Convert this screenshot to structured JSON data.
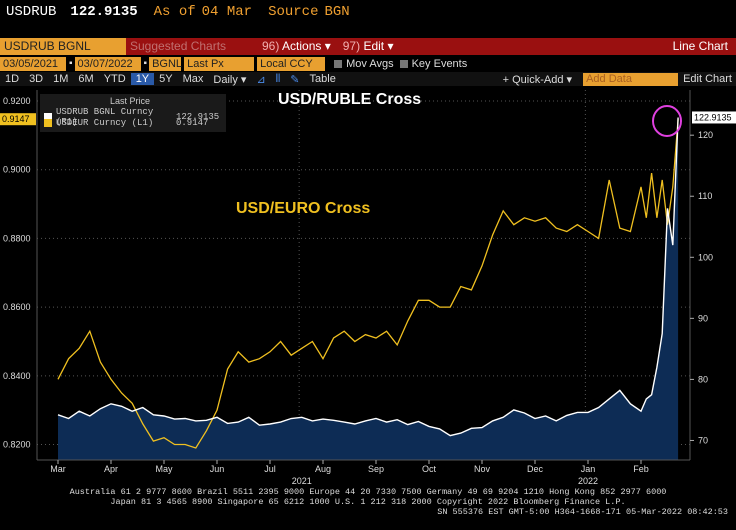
{
  "header": {
    "ticker": "USDRUB",
    "price": "122.9135",
    "asof_label": "As of",
    "asof_date": "04 Mar",
    "source_label": "Source",
    "source_value": "BGN"
  },
  "toolbar": {
    "security": "USDRUB BGNL Curncy",
    "suggested": "Suggested Charts",
    "actions": "Actions",
    "edit": "Edit",
    "chart_type": "Line Chart",
    "start_date": "03/05/2021",
    "end_date": "03/07/2022",
    "source": "BGNL",
    "field": "Last Px",
    "currency": "Local CCY",
    "mov_avgs": "Mov Avgs",
    "key_events": "Key Events",
    "periods": [
      "1D",
      "3D",
      "1M",
      "6M",
      "YTD",
      "1Y",
      "5Y",
      "Max"
    ],
    "selected_period": "1Y",
    "frequency": "Daily",
    "table": "Table",
    "quick_add": "+ Quick-Add",
    "add_data_placeholder": "Add Data",
    "edit_chart": "Edit Chart"
  },
  "legend": {
    "title": "Last Price",
    "items": [
      {
        "name": "USDRUB BGNL Curncy (R1)",
        "value": "122.9135",
        "color": "#ffffff"
      },
      {
        "name": "USDEUR Curncy (L1)",
        "value": "0.9147",
        "color": "#f0c020"
      }
    ]
  },
  "annotations": {
    "ruble": "USD/RUBLE Cross",
    "euro": "USD/EURO Cross"
  },
  "chart_data": {
    "type": "line",
    "title": "",
    "x_months": [
      "Mar",
      "Apr",
      "May",
      "Jun",
      "Jul",
      "Aug",
      "Sep",
      "Oct",
      "Nov",
      "Dec",
      "Jan",
      "Feb"
    ],
    "year_labels": [
      {
        "label": "2021",
        "month_index": 4.6
      },
      {
        "label": "2022",
        "month_index": 10.0
      }
    ],
    "left_axis": {
      "ticks": [
        0.82,
        0.84,
        0.86,
        0.88,
        0.9,
        0.92
      ],
      "labels": [
        "0.8200",
        "0.8400",
        "0.8600",
        "0.8800",
        "0.9000",
        "0.9200"
      ],
      "range": [
        0.8155,
        0.9232
      ]
    },
    "right_axis": {
      "ticks": [
        70,
        80,
        90,
        100,
        110,
        120
      ],
      "range": [
        66.8,
        127.4
      ]
    },
    "last_left_label": "0.9147",
    "last_right_label": "122.9135",
    "series": [
      {
        "name": "USDRUB BGNL Curncy (R1)",
        "axis": "right",
        "color": "#ffffff",
        "fill": "#0d2c55",
        "x": [
          0,
          0.2,
          0.4,
          0.6,
          0.8,
          1,
          1.2,
          1.4,
          1.6,
          1.8,
          2,
          2.2,
          2.4,
          2.6,
          2.8,
          3,
          3.2,
          3.4,
          3.6,
          3.8,
          4,
          4.2,
          4.4,
          4.6,
          4.8,
          5,
          5.2,
          5.4,
          5.6,
          5.8,
          6,
          6.2,
          6.4,
          6.6,
          6.8,
          7,
          7.2,
          7.4,
          7.6,
          7.8,
          8,
          8.2,
          8.4,
          8.6,
          8.8,
          9,
          9.2,
          9.4,
          9.6,
          9.8,
          10,
          10.2,
          10.4,
          10.6,
          10.8,
          11,
          11.1,
          11.2,
          11.3,
          11.4,
          11.5,
          11.6,
          11.7
        ],
        "values": [
          74.2,
          73.6,
          74.8,
          74.0,
          75.2,
          76.0,
          75.6,
          74.8,
          75.4,
          74.2,
          74.0,
          73.5,
          73.6,
          73.2,
          73.3,
          73.8,
          72.8,
          73.0,
          73.8,
          72.5,
          72.7,
          73.0,
          73.6,
          73.8,
          73.2,
          73.5,
          73.3,
          73.0,
          72.7,
          73.2,
          73.6,
          73.0,
          73.4,
          72.6,
          73.1,
          72.3,
          71.9,
          70.8,
          71.2,
          72.0,
          72.1,
          73.2,
          73.8,
          75.0,
          74.5,
          73.6,
          74.0,
          73.2,
          74.1,
          74.6,
          74.6,
          75.4,
          76.8,
          78.2,
          76.0,
          74.8,
          76.8,
          77.5,
          82.0,
          87.5,
          108.0,
          102.0,
          122.9
        ]
      },
      {
        "name": "USDEUR Curncy (L1)",
        "axis": "left",
        "color": "#f0c020",
        "x": [
          0,
          0.2,
          0.4,
          0.6,
          0.8,
          1,
          1.2,
          1.4,
          1.6,
          1.8,
          2,
          2.2,
          2.4,
          2.6,
          2.8,
          3,
          3.2,
          3.4,
          3.6,
          3.8,
          4,
          4.2,
          4.4,
          4.6,
          4.8,
          5,
          5.2,
          5.4,
          5.6,
          5.8,
          6,
          6.2,
          6.4,
          6.6,
          6.8,
          7,
          7.2,
          7.4,
          7.6,
          7.8,
          8,
          8.2,
          8.4,
          8.6,
          8.8,
          9,
          9.2,
          9.4,
          9.6,
          9.8,
          10,
          10.2,
          10.4,
          10.6,
          10.8,
          11,
          11.1,
          11.2,
          11.3,
          11.4,
          11.5,
          11.6,
          11.7
        ],
        "values": [
          0.839,
          0.845,
          0.848,
          0.853,
          0.844,
          0.839,
          0.835,
          0.832,
          0.826,
          0.821,
          0.822,
          0.82,
          0.82,
          0.819,
          0.824,
          0.83,
          0.842,
          0.847,
          0.844,
          0.845,
          0.847,
          0.85,
          0.846,
          0.848,
          0.85,
          0.845,
          0.851,
          0.853,
          0.85,
          0.852,
          0.851,
          0.853,
          0.849,
          0.856,
          0.862,
          0.862,
          0.86,
          0.86,
          0.866,
          0.865,
          0.872,
          0.881,
          0.888,
          0.884,
          0.886,
          0.885,
          0.886,
          0.883,
          0.882,
          0.884,
          0.882,
          0.88,
          0.897,
          0.883,
          0.882,
          0.895,
          0.886,
          0.899,
          0.886,
          0.897,
          0.884,
          0.895,
          0.9147
        ]
      }
    ]
  },
  "footer": {
    "line1": "Australia 61 2 9777 8600 Brazil 5511 2395 9000 Europe 44 20 7330 7500 Germany 49 69 9204 1210 Hong Kong 852 2977 6000",
    "line2": "Japan 81 3 4565 8900      Singapore 65 6212 1000      U.S. 1 212 318 2000      Copyright 2022 Bloomberg Finance L.P.",
    "line3": "SN 555376 EST  GMT-5:00 H364-1668-171 05-Mar-2022 08:42:53"
  }
}
